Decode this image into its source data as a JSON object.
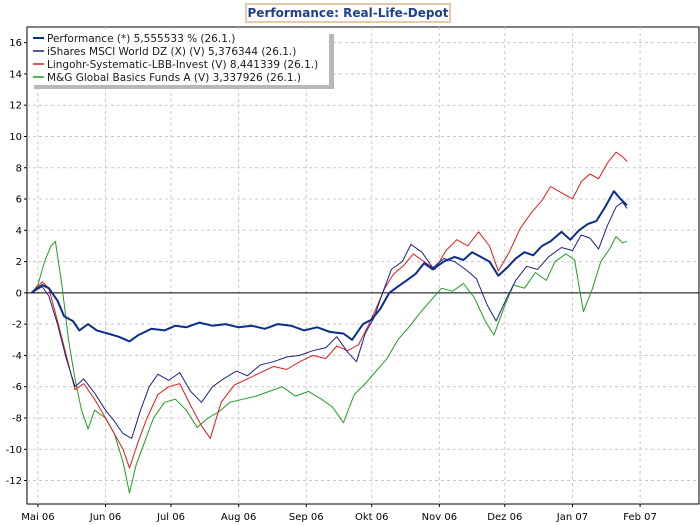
{
  "chart_data": {
    "type": "line",
    "title": "Performance: Real-Life-Depot",
    "xlabel": "",
    "ylabel": "",
    "ylim": [
      -13.5,
      17
    ],
    "xlim": [
      "2006-04-26",
      "2007-02-28"
    ],
    "yticks": [
      -12,
      -10,
      -8,
      -6,
      -4,
      -2,
      0,
      2,
      4,
      6,
      8,
      10,
      12,
      14,
      16
    ],
    "xticks": [
      {
        "label": "Mai 06",
        "date": "2006-05-01"
      },
      {
        "label": "Jun 06",
        "date": "2006-06-01"
      },
      {
        "label": "Jul 06",
        "date": "2006-07-01"
      },
      {
        "label": "Aug 06",
        "date": "2006-08-01"
      },
      {
        "label": "Sep 06",
        "date": "2006-09-01"
      },
      {
        "label": "Okt 06",
        "date": "2006-10-01"
      },
      {
        "label": "Nov 06",
        "date": "2006-11-01"
      },
      {
        "label": "Dez 06",
        "date": "2006-12-01"
      },
      {
        "label": "Jan 07",
        "date": "2007-01-01"
      },
      {
        "label": "Feb 07",
        "date": "2007-02-01"
      }
    ],
    "grid": true,
    "legend_position": "top-left",
    "series": [
      {
        "name": "Performance (*) 5,555533 % (26.1.)",
        "color": "#0b2d8c",
        "width": 2,
        "points": [
          [
            "2006-04-28",
            0
          ],
          [
            "2006-05-03",
            0.5
          ],
          [
            "2006-05-06",
            0.3
          ],
          [
            "2006-05-10",
            -0.5
          ],
          [
            "2006-05-13",
            -1.5
          ],
          [
            "2006-05-17",
            -1.8
          ],
          [
            "2006-05-20",
            -2.4
          ],
          [
            "2006-05-24",
            -2.0
          ],
          [
            "2006-05-28",
            -2.4
          ],
          [
            "2006-06-02",
            -2.6
          ],
          [
            "2006-06-07",
            -2.8
          ],
          [
            "2006-06-12",
            -3.1
          ],
          [
            "2006-06-16",
            -2.7
          ],
          [
            "2006-06-22",
            -2.3
          ],
          [
            "2006-06-28",
            -2.4
          ],
          [
            "2006-07-03",
            -2.1
          ],
          [
            "2006-07-08",
            -2.2
          ],
          [
            "2006-07-14",
            -1.9
          ],
          [
            "2006-07-20",
            -2.1
          ],
          [
            "2006-07-26",
            -2.0
          ],
          [
            "2006-08-01",
            -2.2
          ],
          [
            "2006-08-07",
            -2.1
          ],
          [
            "2006-08-13",
            -2.3
          ],
          [
            "2006-08-19",
            -2.0
          ],
          [
            "2006-08-25",
            -2.1
          ],
          [
            "2006-08-31",
            -2.4
          ],
          [
            "2006-09-06",
            -2.2
          ],
          [
            "2006-09-12",
            -2.5
          ],
          [
            "2006-09-18",
            -2.6
          ],
          [
            "2006-09-22",
            -3.0
          ],
          [
            "2006-09-27",
            -2.0
          ],
          [
            "2006-10-01",
            -1.7
          ],
          [
            "2006-10-05",
            -1.0
          ],
          [
            "2006-10-09",
            0
          ],
          [
            "2006-10-13",
            0.4
          ],
          [
            "2006-10-17",
            0.8
          ],
          [
            "2006-10-21",
            1.2
          ],
          [
            "2006-10-25",
            1.9
          ],
          [
            "2006-10-29",
            1.5
          ],
          [
            "2006-11-03",
            2.0
          ],
          [
            "2006-11-08",
            2.3
          ],
          [
            "2006-11-12",
            2.1
          ],
          [
            "2006-11-16",
            2.6
          ],
          [
            "2006-11-20",
            2.3
          ],
          [
            "2006-11-24",
            2.0
          ],
          [
            "2006-11-28",
            1.1
          ],
          [
            "2006-12-02",
            1.6
          ],
          [
            "2006-12-06",
            2.2
          ],
          [
            "2006-12-10",
            2.6
          ],
          [
            "2006-12-14",
            2.4
          ],
          [
            "2006-12-18",
            3.0
          ],
          [
            "2006-12-22",
            3.3
          ],
          [
            "2006-12-27",
            3.9
          ],
          [
            "2006-12-31",
            3.4
          ],
          [
            "2007-01-04",
            4.0
          ],
          [
            "2007-01-08",
            4.4
          ],
          [
            "2007-01-12",
            4.6
          ],
          [
            "2007-01-16",
            5.5
          ],
          [
            "2007-01-20",
            6.5
          ],
          [
            "2007-01-23",
            6.0
          ],
          [
            "2007-01-26",
            5.6
          ]
        ]
      },
      {
        "name": "iShares MSCI World DZ (X) (V) 5,376344 (26.1.)",
        "color": "#1a237e",
        "width": 1,
        "points": [
          [
            "2006-04-28",
            0
          ],
          [
            "2006-05-03",
            0.4
          ],
          [
            "2006-05-06",
            -0.2
          ],
          [
            "2006-05-10",
            -2.0
          ],
          [
            "2006-05-14",
            -4.2
          ],
          [
            "2006-05-18",
            -6.0
          ],
          [
            "2006-05-22",
            -5.5
          ],
          [
            "2006-05-27",
            -6.4
          ],
          [
            "2006-06-01",
            -7.5
          ],
          [
            "2006-06-05",
            -8.2
          ],
          [
            "2006-06-09",
            -9.0
          ],
          [
            "2006-06-13",
            -9.3
          ],
          [
            "2006-06-17",
            -7.5
          ],
          [
            "2006-06-21",
            -6.0
          ],
          [
            "2006-06-25",
            -5.2
          ],
          [
            "2006-06-30",
            -5.6
          ],
          [
            "2006-07-05",
            -5.1
          ],
          [
            "2006-07-10",
            -6.3
          ],
          [
            "2006-07-15",
            -7.0
          ],
          [
            "2006-07-20",
            -6.0
          ],
          [
            "2006-07-25",
            -5.5
          ],
          [
            "2006-07-31",
            -5.0
          ],
          [
            "2006-08-05",
            -5.3
          ],
          [
            "2006-08-11",
            -4.6
          ],
          [
            "2006-08-17",
            -4.4
          ],
          [
            "2006-08-23",
            -4.1
          ],
          [
            "2006-08-29",
            -4.0
          ],
          [
            "2006-09-04",
            -3.7
          ],
          [
            "2006-09-10",
            -3.5
          ],
          [
            "2006-09-15",
            -2.8
          ],
          [
            "2006-09-20",
            -3.8
          ],
          [
            "2006-09-24",
            -4.4
          ],
          [
            "2006-09-28",
            -2.6
          ],
          [
            "2006-10-02",
            -1.6
          ],
          [
            "2006-10-06",
            0
          ],
          [
            "2006-10-10",
            1.5
          ],
          [
            "2006-10-15",
            2.0
          ],
          [
            "2006-10-19",
            3.1
          ],
          [
            "2006-10-24",
            2.6
          ],
          [
            "2006-10-29",
            1.6
          ],
          [
            "2006-11-03",
            2.2
          ],
          [
            "2006-11-08",
            2.0
          ],
          [
            "2006-11-13",
            1.5
          ],
          [
            "2006-11-18",
            0.9
          ],
          [
            "2006-11-23",
            -0.8
          ],
          [
            "2006-11-27",
            -1.8
          ],
          [
            "2006-12-02",
            -0.3
          ],
          [
            "2006-12-06",
            0.8
          ],
          [
            "2006-12-11",
            1.7
          ],
          [
            "2006-12-16",
            1.5
          ],
          [
            "2006-12-21",
            2.3
          ],
          [
            "2006-12-27",
            2.9
          ],
          [
            "2007-01-01",
            2.7
          ],
          [
            "2007-01-05",
            3.7
          ],
          [
            "2007-01-09",
            3.5
          ],
          [
            "2007-01-13",
            2.8
          ],
          [
            "2007-01-17",
            4.3
          ],
          [
            "2007-01-21",
            5.5
          ],
          [
            "2007-01-24",
            5.8
          ],
          [
            "2007-01-26",
            5.4
          ]
        ]
      },
      {
        "name": "Lingohr-Systematic-LBB-Invest (V) 8,441339 (26.1.)",
        "color": "#e21a1a",
        "width": 1,
        "points": [
          [
            "2006-04-28",
            0
          ],
          [
            "2006-05-03",
            0.7
          ],
          [
            "2006-05-06",
            0.3
          ],
          [
            "2006-05-10",
            -1.8
          ],
          [
            "2006-05-14",
            -4.0
          ],
          [
            "2006-05-18",
            -6.2
          ],
          [
            "2006-05-22",
            -5.8
          ],
          [
            "2006-05-27",
            -6.8
          ],
          [
            "2006-06-01",
            -8.0
          ],
          [
            "2006-06-05",
            -9.0
          ],
          [
            "2006-06-09",
            -10.0
          ],
          [
            "2006-06-12",
            -11.2
          ],
          [
            "2006-06-16",
            -9.5
          ],
          [
            "2006-06-20",
            -8.0
          ],
          [
            "2006-06-25",
            -6.5
          ],
          [
            "2006-06-30",
            -6.0
          ],
          [
            "2006-07-05",
            -5.8
          ],
          [
            "2006-07-10",
            -7.2
          ],
          [
            "2006-07-15",
            -8.5
          ],
          [
            "2006-07-19",
            -9.3
          ],
          [
            "2006-07-24",
            -7.0
          ],
          [
            "2006-07-30",
            -5.9
          ],
          [
            "2006-08-05",
            -5.5
          ],
          [
            "2006-08-11",
            -5.1
          ],
          [
            "2006-08-17",
            -4.7
          ],
          [
            "2006-08-23",
            -4.9
          ],
          [
            "2006-08-29",
            -4.4
          ],
          [
            "2006-09-04",
            -4.0
          ],
          [
            "2006-09-10",
            -4.2
          ],
          [
            "2006-09-15",
            -3.4
          ],
          [
            "2006-09-20",
            -3.7
          ],
          [
            "2006-09-25",
            -3.3
          ],
          [
            "2006-09-29",
            -2.2
          ],
          [
            "2006-10-03",
            -1.0
          ],
          [
            "2006-10-07",
            0.3
          ],
          [
            "2006-10-11",
            1.2
          ],
          [
            "2006-10-16",
            1.8
          ],
          [
            "2006-10-20",
            2.5
          ],
          [
            "2006-10-25",
            2.0
          ],
          [
            "2006-10-30",
            1.5
          ],
          [
            "2006-11-04",
            2.7
          ],
          [
            "2006-11-09",
            3.4
          ],
          [
            "2006-11-14",
            3.0
          ],
          [
            "2006-11-19",
            3.9
          ],
          [
            "2006-11-24",
            3.0
          ],
          [
            "2006-11-28",
            1.4
          ],
          [
            "2006-12-03",
            2.6
          ],
          [
            "2006-12-08",
            4.1
          ],
          [
            "2006-12-13",
            5.1
          ],
          [
            "2006-12-18",
            5.9
          ],
          [
            "2006-12-22",
            6.8
          ],
          [
            "2006-12-27",
            6.4
          ],
          [
            "2007-01-01",
            6.0
          ],
          [
            "2007-01-05",
            7.1
          ],
          [
            "2007-01-09",
            7.6
          ],
          [
            "2007-01-13",
            7.3
          ],
          [
            "2007-01-17",
            8.3
          ],
          [
            "2007-01-21",
            9.0
          ],
          [
            "2007-01-24",
            8.7
          ],
          [
            "2007-01-26",
            8.4
          ]
        ]
      },
      {
        "name": "M&G Global Basics Funds A (V) 3,337926 (26.1.)",
        "color": "#1e9e1e",
        "width": 1,
        "points": [
          [
            "2006-04-28",
            0
          ],
          [
            "2006-05-01",
            0.5
          ],
          [
            "2006-05-04",
            2.0
          ],
          [
            "2006-05-07",
            3.0
          ],
          [
            "2006-05-09",
            3.3
          ],
          [
            "2006-05-12",
            0.5
          ],
          [
            "2006-05-15",
            -3.0
          ],
          [
            "2006-05-18",
            -5.5
          ],
          [
            "2006-05-21",
            -7.5
          ],
          [
            "2006-05-24",
            -8.7
          ],
          [
            "2006-05-27",
            -7.5
          ],
          [
            "2006-06-01",
            -8.0
          ],
          [
            "2006-06-05",
            -9.0
          ],
          [
            "2006-06-09",
            -10.8
          ],
          [
            "2006-06-12",
            -12.8
          ],
          [
            "2006-06-15",
            -11.0
          ],
          [
            "2006-06-19",
            -9.5
          ],
          [
            "2006-06-23",
            -8.0
          ],
          [
            "2006-06-28",
            -7.0
          ],
          [
            "2006-07-03",
            -6.8
          ],
          [
            "2006-07-08",
            -7.5
          ],
          [
            "2006-07-13",
            -8.6
          ],
          [
            "2006-07-18",
            -8.0
          ],
          [
            "2006-07-23",
            -7.6
          ],
          [
            "2006-07-28",
            -7.0
          ],
          [
            "2006-08-03",
            -6.8
          ],
          [
            "2006-08-09",
            -6.6
          ],
          [
            "2006-08-15",
            -6.3
          ],
          [
            "2006-08-21",
            -6.0
          ],
          [
            "2006-08-27",
            -6.6
          ],
          [
            "2006-09-02",
            -6.3
          ],
          [
            "2006-09-08",
            -6.8
          ],
          [
            "2006-09-13",
            -7.3
          ],
          [
            "2006-09-18",
            -8.3
          ],
          [
            "2006-09-23",
            -6.5
          ],
          [
            "2006-09-28",
            -5.8
          ],
          [
            "2006-10-03",
            -5.0
          ],
          [
            "2006-10-08",
            -4.2
          ],
          [
            "2006-10-13",
            -3.0
          ],
          [
            "2006-10-18",
            -2.2
          ],
          [
            "2006-10-23",
            -1.3
          ],
          [
            "2006-10-28",
            -0.5
          ],
          [
            "2006-11-02",
            0.3
          ],
          [
            "2006-11-07",
            0.1
          ],
          [
            "2006-11-12",
            0.6
          ],
          [
            "2006-11-17",
            -0.3
          ],
          [
            "2006-11-22",
            -1.8
          ],
          [
            "2006-11-26",
            -2.7
          ],
          [
            "2006-12-01",
            -0.8
          ],
          [
            "2006-12-05",
            0.5
          ],
          [
            "2006-12-10",
            0.3
          ],
          [
            "2006-12-15",
            1.3
          ],
          [
            "2006-12-20",
            0.8
          ],
          [
            "2006-12-24",
            2.0
          ],
          [
            "2006-12-29",
            2.5
          ],
          [
            "2007-01-02",
            2.1
          ],
          [
            "2007-01-06",
            -1.2
          ],
          [
            "2007-01-10",
            0.2
          ],
          [
            "2007-01-14",
            2.0
          ],
          [
            "2007-01-18",
            2.8
          ],
          [
            "2007-01-21",
            3.6
          ],
          [
            "2007-01-24",
            3.2
          ],
          [
            "2007-01-26",
            3.3
          ]
        ]
      }
    ]
  }
}
